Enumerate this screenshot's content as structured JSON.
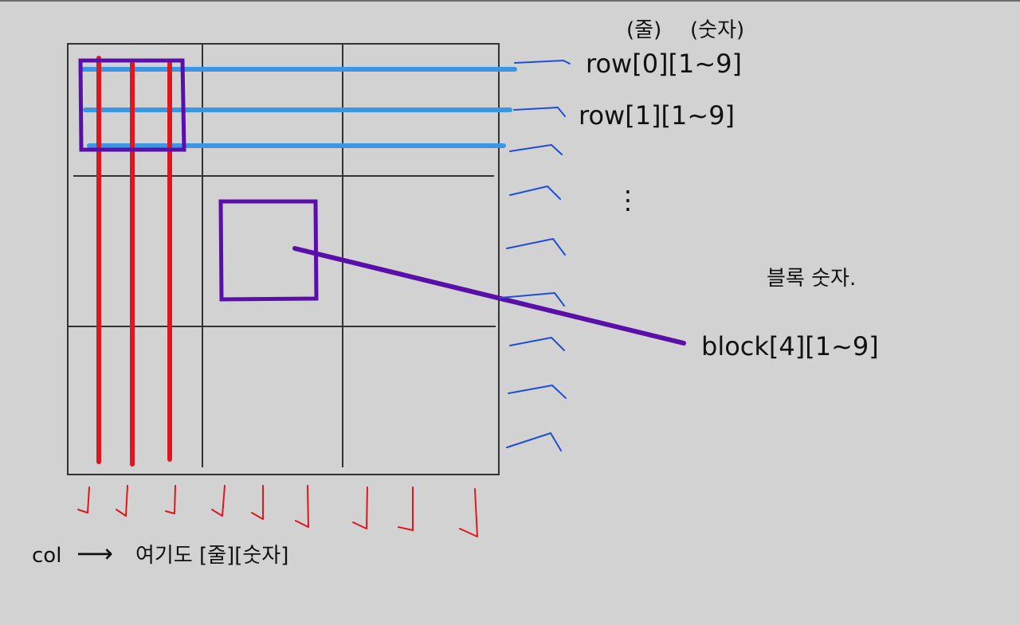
{
  "header": {
    "left": "(줄)",
    "right": "(숫자)"
  },
  "rows": {
    "row0": "row[0][1~9]",
    "row1": "row[1][1~9]",
    "ellipsis": "⋮"
  },
  "block": {
    "title": "블록 숫자.",
    "label": "block[4][1~9]"
  },
  "col": {
    "label": "col",
    "arrow": "⟶",
    "note": "여기도 [줄][숫자]"
  },
  "colors": {
    "background": "#d2d2d2",
    "grid": "#333333",
    "row_line": "#3b96e6",
    "col_line": "#e0161e",
    "box": "#5a0eaa",
    "row_tick": "#1e4fd6",
    "col_tick": "#e0161e"
  }
}
